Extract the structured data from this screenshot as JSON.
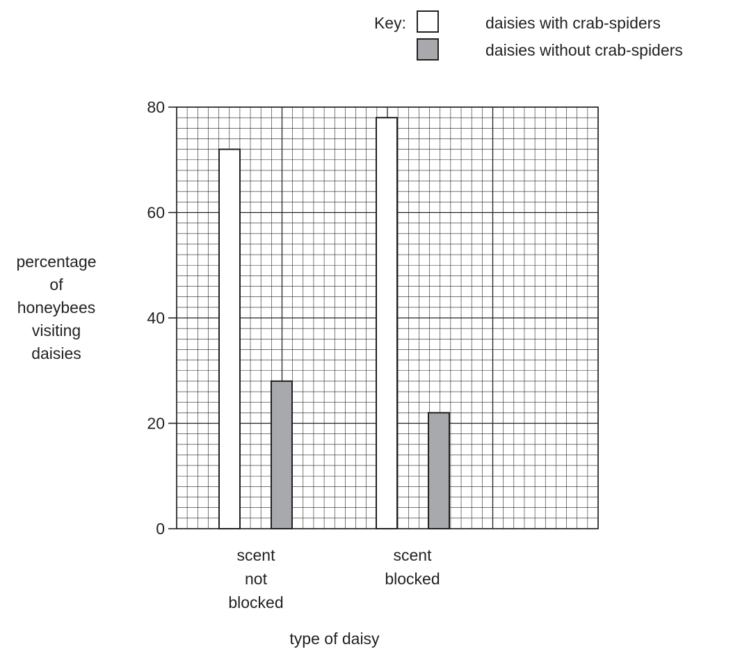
{
  "chart_data": {
    "type": "bar",
    "title": "",
    "xlabel": "type of daisy",
    "ylabel_lines": [
      "percentage",
      "of",
      "honeybees",
      "visiting",
      "daisies"
    ],
    "categories": [
      {
        "lines": [
          "scent",
          "not",
          "blocked"
        ]
      },
      {
        "lines": [
          "scent",
          "blocked"
        ]
      }
    ],
    "series": [
      {
        "name": "daisies with crab-spiders",
        "color": "#ffffff",
        "values": [
          72,
          78
        ]
      },
      {
        "name": "daisies without crab-spiders",
        "color": "#a7a9ac",
        "values": [
          28,
          22
        ]
      }
    ],
    "ylim": [
      0,
      80
    ],
    "y_ticks": [
      "0",
      "20",
      "40",
      "60",
      "80"
    ],
    "grid": true,
    "legend": {
      "title": "Key:",
      "position": "top-right"
    }
  }
}
